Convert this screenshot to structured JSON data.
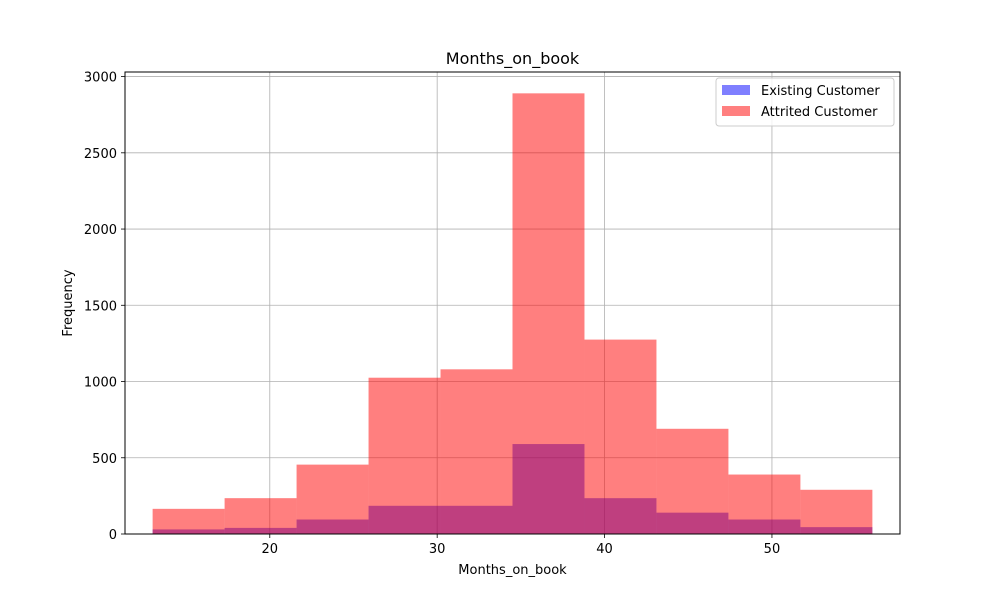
{
  "chart_data": {
    "type": "bar",
    "title": "Months_on_book",
    "xlabel": "Months_on_book",
    "ylabel": "Frequency",
    "xlim": [
      11.35,
      57.65
    ],
    "ylim": [
      0,
      3030
    ],
    "grid": true,
    "legend_position": "top-right",
    "x_ticks": [
      20,
      30,
      40,
      50
    ],
    "y_ticks": [
      0,
      500,
      1000,
      1500,
      2000,
      2500,
      3000
    ],
    "bin_edges": [
      13,
      17.3,
      21.6,
      25.9,
      30.2,
      34.5,
      38.8,
      43.1,
      47.4,
      51.7,
      56
    ],
    "series": [
      {
        "name": "Existing Customer",
        "color": "#0000ff",
        "opacity": 0.5,
        "values": [
          30,
          40,
          95,
          185,
          185,
          590,
          235,
          140,
          95,
          45
        ]
      },
      {
        "name": "Attrited Customer",
        "color": "#ff0000",
        "opacity": 0.5,
        "values": [
          165,
          235,
          455,
          1025,
          1080,
          2890,
          1275,
          690,
          390,
          290
        ]
      }
    ]
  }
}
